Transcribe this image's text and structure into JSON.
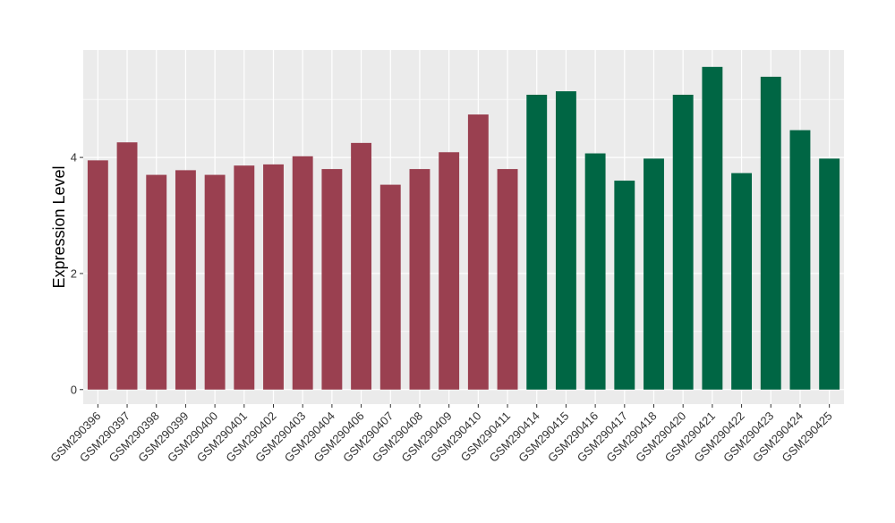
{
  "chart_data": {
    "type": "bar",
    "title": "",
    "xlabel": "",
    "ylabel": "Expression Level",
    "ylim": [
      -0.25,
      5.85
    ],
    "yticks": [
      0,
      2,
      4
    ],
    "grid": true,
    "legend": "none",
    "categories": [
      "GSM290396",
      "GSM290397",
      "GSM290398",
      "GSM290399",
      "GSM290400",
      "GSM290401",
      "GSM290402",
      "GSM290403",
      "GSM290404",
      "GSM290406",
      "GSM290407",
      "GSM290408",
      "GSM290409",
      "GSM290410",
      "GSM290411",
      "GSM290414",
      "GSM290415",
      "GSM290416",
      "GSM290417",
      "GSM290418",
      "GSM290420",
      "GSM290421",
      "GSM290422",
      "GSM290423",
      "GSM290424",
      "GSM290425"
    ],
    "values": [
      3.95,
      4.26,
      3.7,
      3.78,
      3.7,
      3.86,
      3.88,
      4.02,
      3.8,
      4.25,
      3.53,
      3.8,
      4.09,
      4.74,
      3.8,
      5.08,
      5.14,
      4.07,
      3.6,
      3.98,
      5.08,
      5.56,
      3.73,
      5.39,
      4.47,
      3.98
    ],
    "bar_colors": [
      "#9a4050",
      "#9a4050",
      "#9a4050",
      "#9a4050",
      "#9a4050",
      "#9a4050",
      "#9a4050",
      "#9a4050",
      "#9a4050",
      "#9a4050",
      "#9a4050",
      "#9a4050",
      "#9a4050",
      "#9a4050",
      "#9a4050",
      "#006644",
      "#006644",
      "#006644",
      "#006644",
      "#006644",
      "#006644",
      "#006644",
      "#006644",
      "#006644",
      "#006644",
      "#006644"
    ],
    "panel_background": "#ebebeb",
    "gridline_color": "#ffffff"
  }
}
